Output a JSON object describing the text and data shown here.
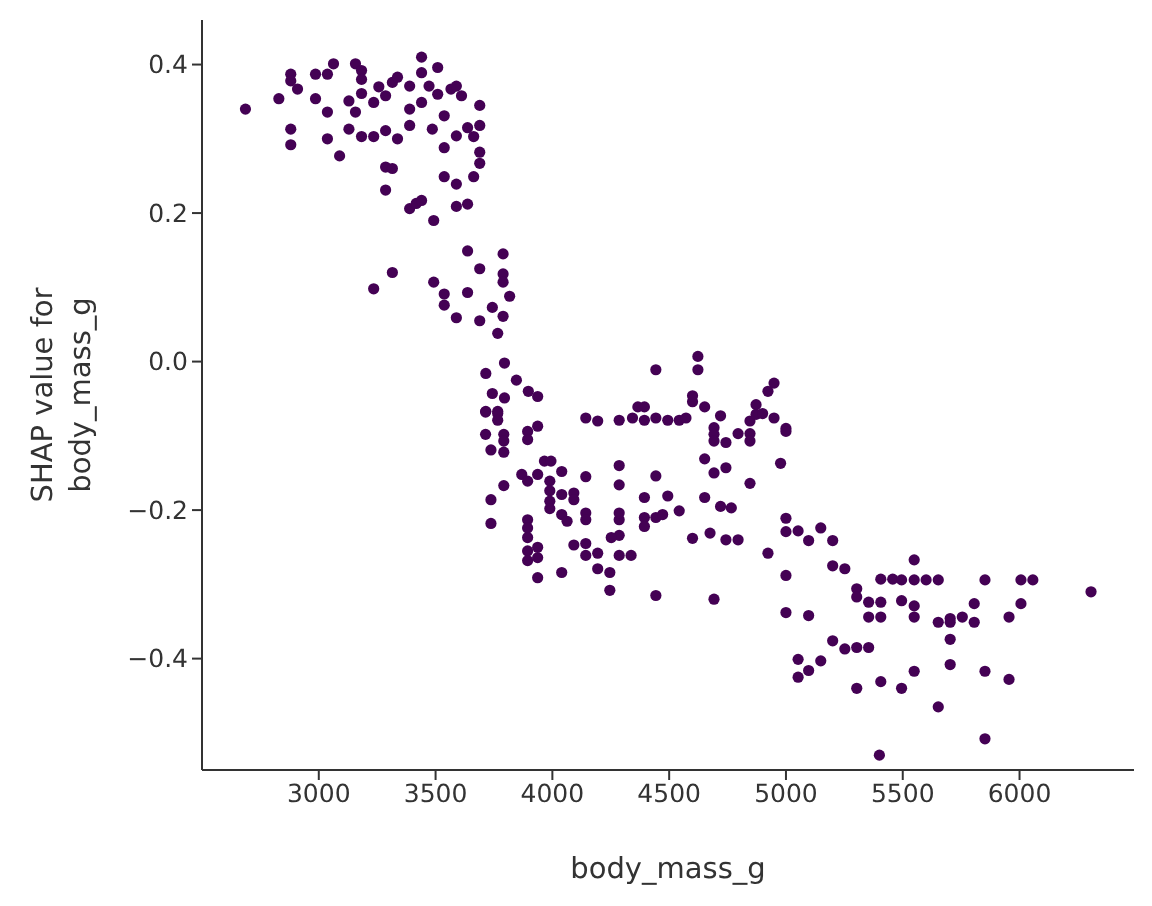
{
  "chart_data": {
    "type": "scatter",
    "xlabel": "body_mass_g",
    "ylabel": "SHAP value for\nbody_mass_g",
    "xlim": [
      2500,
      6490
    ],
    "ylim": [
      -0.55,
      0.46
    ],
    "xticks": [
      3000,
      3500,
      4000,
      4500,
      5000,
      5500,
      6000
    ],
    "yticks": [
      {
        "value": -0.4,
        "label": "−0.4"
      },
      {
        "value": -0.2,
        "label": "−0.2"
      },
      {
        "value": 0,
        "label": "0.0"
      },
      0.2,
      0.4
    ],
    "grid": false,
    "marker": "circle",
    "series": [
      {
        "color": "#440154",
        "x": [
          2686,
          2829,
          2880,
          2880,
          2909,
          2880,
          2880,
          2986,
          2986,
          3037,
          3063,
          3037,
          3037,
          3089,
          3129,
          3129,
          3157,
          3183,
          3183,
          3183,
          3157,
          3183,
          3235,
          3235,
          3257,
          3286,
          3286,
          3286,
          3315,
          3286,
          3315,
          3337,
          3337,
          3389,
          3389,
          3389,
          3389,
          3417,
          3440,
          3440,
          3440,
          3440,
          3472,
          3486,
          3492,
          3509,
          3509,
          3537,
          3537,
          3537,
          3566,
          3589,
          3589,
          3589,
          3589,
          3611,
          3637,
          3637,
          3663,
          3663,
          3689,
          3689,
          3689,
          3689,
          3637,
          3689,
          3789,
          3789,
          3789,
          3817,
          3315,
          3235,
          3492,
          3537,
          3537,
          3637,
          3589,
          3689,
          3743,
          3789,
          3766,
          3795,
          3715,
          3846,
          3743,
          3795,
          3897,
          3937,
          3715,
          3766,
          3714,
          3766,
          3766,
          3714,
          3792,
          3792,
          3737,
          3792,
          3894,
          3894,
          3937,
          3869,
          3894,
          3937,
          3966,
          3994,
          3792,
          3737,
          3737,
          3989,
          3989,
          3989,
          3989,
          4040,
          4040,
          4092,
          4092,
          4040,
          4063,
          4143,
          4143,
          4143,
          3894,
          3894,
          3894,
          3894,
          3894,
          3937,
          3937,
          3937,
          4040,
          4092,
          4143,
          4143,
          4194,
          4194,
          4246,
          4246,
          4286,
          4337,
          4286,
          4252,
          4286,
          4286,
          4286,
          4286,
          4143,
          4194,
          4286,
          4343,
          4366,
          4394,
          4394,
          4443,
          4443,
          4443,
          4394,
          4394,
          4394,
          4443,
          4443,
          4472,
          4494,
          4543,
          4494,
          4543,
          4572,
          4600,
          4600,
          4623,
          4623,
          4652,
          4600,
          4675,
          4743,
          4795,
          4652,
          4692,
          4743,
          4652,
          4720,
          4766,
          4692,
          4692,
          4692,
          4743,
          4720,
          4795,
          4846,
          4846,
          4846,
          4872,
          4900,
          4872,
          4923,
          4949,
          4949,
          5000,
          5000,
          4977,
          4846,
          4692,
          4923,
          5000,
          5000,
          5052,
          5097,
          5149,
          5200,
          5000,
          5000,
          5097,
          5200,
          5252,
          5303,
          5303,
          5354,
          5406,
          5457,
          5406,
          5354,
          5406,
          5200,
          5252,
          5303,
          5354,
          5149,
          5052,
          5097,
          5052,
          5303,
          5406,
          5495,
          5495,
          5549,
          5549,
          5549,
          5549,
          5549,
          5600,
          5652,
          5652,
          5652,
          5703,
          5703,
          5703,
          5703,
          5755,
          5806,
          5806,
          5852,
          5852,
          5852,
          5955,
          5955,
          6006,
          6057,
          6006,
          6306,
          5495,
          5400
        ],
        "values": [
          0.34,
          0.354,
          0.387,
          0.378,
          0.367,
          0.313,
          0.292,
          0.387,
          0.354,
          0.387,
          0.401,
          0.336,
          0.3,
          0.277,
          0.351,
          0.313,
          0.401,
          0.392,
          0.38,
          0.361,
          0.336,
          0.303,
          0.303,
          0.349,
          0.37,
          0.358,
          0.311,
          0.262,
          0.26,
          0.231,
          0.376,
          0.383,
          0.3,
          0.371,
          0.34,
          0.318,
          0.206,
          0.213,
          0.217,
          0.41,
          0.389,
          0.349,
          0.371,
          0.313,
          0.19,
          0.396,
          0.36,
          0.331,
          0.288,
          0.249,
          0.367,
          0.371,
          0.304,
          0.239,
          0.209,
          0.358,
          0.315,
          0.212,
          0.303,
          0.249,
          0.345,
          0.318,
          0.282,
          0.267,
          0.149,
          0.125,
          0.145,
          0.118,
          0.107,
          0.088,
          0.12,
          0.098,
          0.107,
          0.091,
          0.076,
          0.093,
          0.059,
          0.055,
          0.073,
          0.061,
          0.038,
          -0.002,
          -0.016,
          -0.025,
          -0.043,
          -0.049,
          -0.04,
          -0.047,
          -0.067,
          -0.067,
          -0.068,
          -0.07,
          -0.079,
          -0.098,
          -0.098,
          -0.107,
          -0.119,
          -0.122,
          -0.094,
          -0.105,
          -0.087,
          -0.152,
          -0.161,
          -0.152,
          -0.134,
          -0.134,
          -0.167,
          -0.186,
          -0.218,
          -0.161,
          -0.174,
          -0.188,
          -0.198,
          -0.148,
          -0.179,
          -0.177,
          -0.186,
          -0.206,
          -0.215,
          -0.155,
          -0.204,
          -0.213,
          -0.213,
          -0.224,
          -0.237,
          -0.255,
          -0.268,
          -0.25,
          -0.264,
          -0.291,
          -0.284,
          -0.247,
          -0.245,
          -0.261,
          -0.258,
          -0.279,
          -0.284,
          -0.308,
          -0.261,
          -0.261,
          -0.234,
          -0.237,
          -0.213,
          -0.204,
          -0.166,
          -0.14,
          -0.076,
          -0.08,
          -0.079,
          -0.076,
          -0.061,
          -0.061,
          -0.079,
          -0.076,
          -0.011,
          -0.154,
          -0.183,
          -0.21,
          -0.222,
          -0.21,
          -0.315,
          -0.206,
          -0.181,
          -0.201,
          -0.079,
          -0.079,
          -0.076,
          -0.054,
          -0.046,
          0.007,
          -0.011,
          -0.061,
          -0.238,
          -0.231,
          -0.24,
          -0.24,
          -0.183,
          -0.15,
          -0.143,
          -0.131,
          -0.195,
          -0.197,
          -0.089,
          -0.098,
          -0.107,
          -0.109,
          -0.073,
          -0.097,
          -0.097,
          -0.107,
          -0.08,
          -0.071,
          -0.07,
          -0.058,
          -0.04,
          -0.029,
          -0.076,
          -0.09,
          -0.094,
          -0.137,
          -0.164,
          -0.32,
          -0.258,
          -0.211,
          -0.229,
          -0.228,
          -0.241,
          -0.224,
          -0.241,
          -0.288,
          -0.338,
          -0.342,
          -0.275,
          -0.279,
          -0.306,
          -0.317,
          -0.324,
          -0.293,
          -0.293,
          -0.324,
          -0.344,
          -0.344,
          -0.376,
          -0.387,
          -0.385,
          -0.385,
          -0.403,
          -0.401,
          -0.416,
          -0.425,
          -0.44,
          -0.431,
          -0.294,
          -0.322,
          -0.267,
          -0.294,
          -0.329,
          -0.344,
          -0.417,
          -0.294,
          -0.294,
          -0.351,
          -0.465,
          -0.346,
          -0.351,
          -0.374,
          -0.408,
          -0.344,
          -0.326,
          -0.351,
          -0.294,
          -0.417,
          -0.508,
          -0.344,
          -0.428,
          -0.294,
          -0.294,
          -0.326,
          -0.31,
          -0.44,
          -0.53
        ]
      }
    ]
  }
}
